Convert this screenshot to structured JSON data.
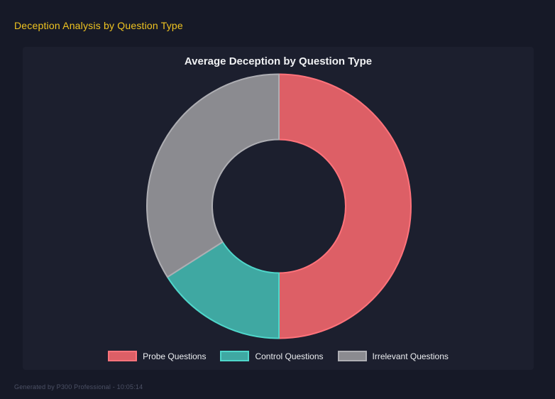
{
  "page": {
    "title": "Deception Analysis by Question Type",
    "footer": "Generated by P300 Professional - 10:05:14"
  },
  "colors": {
    "page_bg": "#161927",
    "panel_bg": "#1c1f2e",
    "title_yellow": "#f0c420",
    "chart_title_text": "#f0f1f3",
    "legend_text": "#eceef1",
    "footer_text": "#4c5165"
  },
  "chart_data": {
    "type": "pie",
    "variant": "doughnut",
    "title": "Average Deception by Question Type",
    "categories": [
      "Probe Questions",
      "Control Questions",
      "Irrelevant Questions"
    ],
    "values_percent": [
      50,
      16,
      34
    ],
    "colors": [
      "#dd5f66",
      "#3fa8a2",
      "#8b8b90"
    ],
    "border_colors": [
      "#ff737b",
      "#4fd6ca",
      "#aeaeb3"
    ],
    "start_angle_deg": 0,
    "direction": "clockwise",
    "cutout_ratio": 0.5,
    "legend_position": "bottom",
    "grid": false
  }
}
